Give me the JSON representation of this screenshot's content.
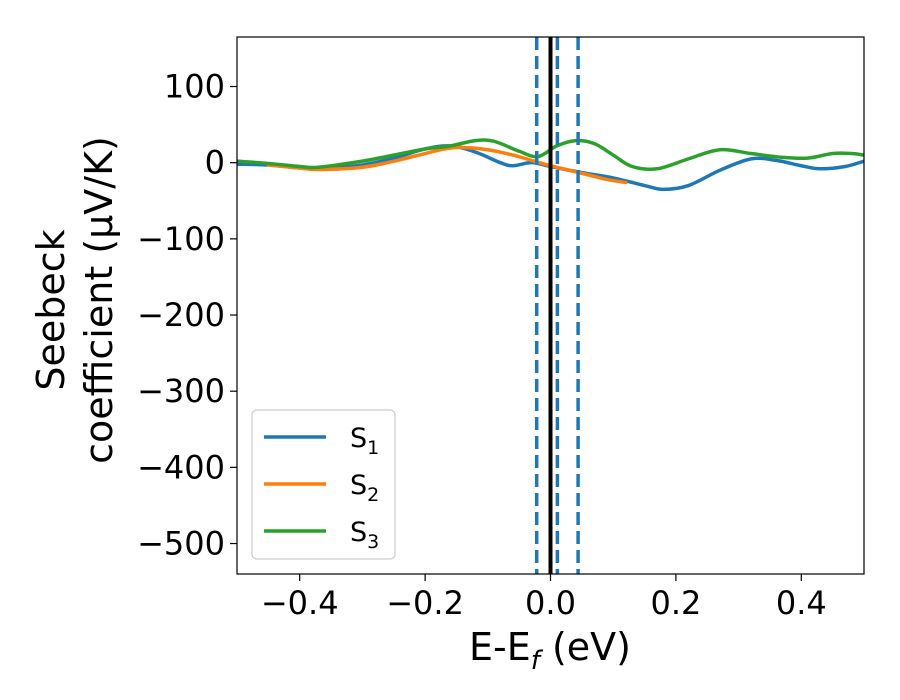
{
  "chart_data": {
    "type": "line",
    "title": "",
    "xlabel_main": "E-E",
    "xlabel_sub": "f",
    "xlabel_units": " (eV)",
    "ylabel_line1": "Seebeck",
    "ylabel_line2": "coefficient  (μV/K)",
    "xlim": [
      -0.5,
      0.5
    ],
    "ylim": [
      -540,
      165
    ],
    "xticks": [
      -0.4,
      -0.2,
      0.0,
      0.2,
      0.4
    ],
    "xtick_labels": [
      "−0.4",
      "−0.2",
      "0.0",
      "0.2",
      "0.4"
    ],
    "yticks": [
      100,
      0,
      -100,
      -200,
      -300,
      -400,
      -500
    ],
    "ytick_labels": [
      "100",
      "0",
      "−100",
      "−200",
      "−300",
      "−400",
      "−500"
    ],
    "grid": false,
    "legend_position": "lower-left",
    "vlines": [
      {
        "x": 0.0,
        "style": "solid",
        "color": "#000000"
      },
      {
        "x": -0.022,
        "style": "dashed",
        "color": "#1f77b4"
      },
      {
        "x": 0.011,
        "style": "dashed",
        "color": "#1f77b4"
      },
      {
        "x": 0.044,
        "style": "dashed",
        "color": "#1f77b4"
      }
    ],
    "series": [
      {
        "name": "S",
        "sub": "1",
        "color": "#1f77b4",
        "x": [
          -0.5,
          -0.45,
          -0.4,
          -0.37,
          -0.3,
          -0.25,
          -0.2,
          -0.16,
          -0.12,
          -0.08,
          -0.06,
          -0.03,
          0.0,
          0.05,
          0.1,
          0.15,
          0.18,
          0.22,
          0.27,
          0.32,
          0.36,
          0.4,
          0.43,
          0.47,
          0.5
        ],
        "values": [
          -2,
          -3,
          -7,
          -8,
          -3,
          6,
          18,
          22,
          14,
          0,
          -4,
          0,
          -5,
          -13,
          -20,
          -30,
          -35,
          -30,
          -10,
          5,
          3,
          -4,
          -8,
          -5,
          2
        ]
      },
      {
        "name": "S",
        "sub": "2",
        "color": "#ff7f0e",
        "x": [
          -0.45,
          -0.4,
          -0.37,
          -0.3,
          -0.25,
          -0.2,
          -0.17,
          -0.14,
          -0.1,
          -0.06,
          -0.03,
          0.0,
          0.03,
          0.06,
          0.09,
          0.12
        ],
        "values": [
          -3,
          -7,
          -9,
          -6,
          2,
          12,
          18,
          20,
          17,
          10,
          3,
          -4,
          -10,
          -16,
          -22,
          -26
        ]
      },
      {
        "name": "S",
        "sub": "3",
        "color": "#2ca02c",
        "x": [
          -0.5,
          -0.45,
          -0.4,
          -0.37,
          -0.3,
          -0.25,
          -0.2,
          -0.16,
          -0.12,
          -0.09,
          -0.05,
          -0.02,
          0.01,
          0.04,
          0.07,
          0.1,
          0.13,
          0.17,
          0.22,
          0.27,
          0.32,
          0.37,
          0.41,
          0.45,
          0.48,
          0.5
        ],
        "values": [
          2,
          -1,
          -5,
          -6,
          2,
          10,
          18,
          22,
          29,
          28,
          15,
          8,
          22,
          29,
          25,
          10,
          -5,
          -8,
          5,
          17,
          12,
          7,
          6,
          12,
          12,
          10
        ]
      }
    ]
  }
}
